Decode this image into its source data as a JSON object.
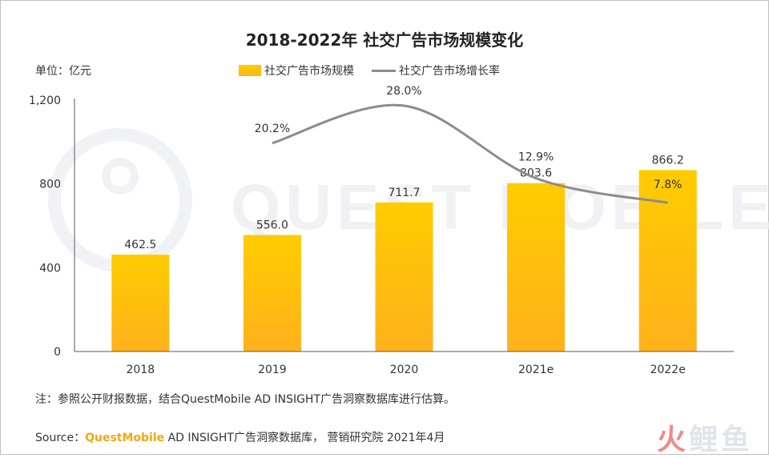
{
  "chart_data": {
    "type": "bar",
    "title": "2018-2022年 社交广告市场规模变化",
    "ylabel": "单位：亿元",
    "categories": [
      "2018",
      "2019",
      "2020",
      "2021e",
      "2022e"
    ],
    "series": [
      {
        "name": "社交广告市场规模",
        "type": "bar",
        "values": [
          462.5,
          556.0,
          711.7,
          803.6,
          866.2
        ],
        "labels": [
          "462.5",
          "556.0",
          "711.7",
          "803.6",
          "866.2"
        ],
        "color": "#ffc400"
      },
      {
        "name": "社交广告市场增长率",
        "type": "line",
        "values": [
          null,
          20.2,
          28.0,
          12.9,
          7.8
        ],
        "labels": [
          "",
          "20.2%",
          "28.0%",
          "12.9%",
          "7.8%"
        ],
        "color": "#8c8c8c"
      }
    ],
    "ylim": [
      0,
      1200
    ],
    "yticks": [
      "0",
      "400",
      "800",
      "1,200"
    ],
    "grid": false,
    "legend_position": "top"
  },
  "note": "注：参照公开财报数据，结合QuestMobile AD INSIGHT广告洞察数据库进行估算。",
  "source": {
    "prefix": "Source：",
    "brand": "QuestMobile",
    "rest": " AD INSIGHT广告洞察数据库， 营销研究院 2021年4月"
  },
  "watermark": {
    "background_text": "QUEST MOBILE",
    "logo_first": "火",
    "logo_rest": "鲤鱼"
  }
}
